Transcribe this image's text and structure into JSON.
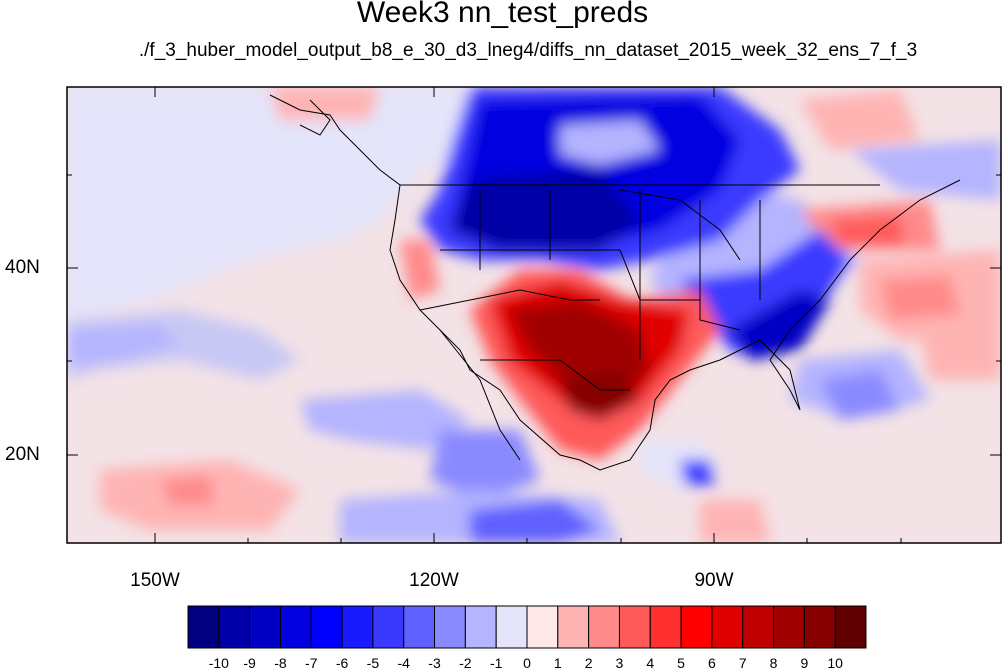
{
  "title": "Week3 nn_test_preds",
  "subtitle": "./f_3_huber_model_output_b8_e_30_d3_lneg4/diffs_nn_dataset_2015_week_32_ens_7_f_3",
  "lat_labels": [
    "40N",
    "20N"
  ],
  "lon_labels": [
    "150W",
    "120W",
    "90W"
  ],
  "colorbar": {
    "colors": [
      "#000080",
      "#0000a6",
      "#0000c4",
      "#0000e0",
      "#0000ff",
      "#1a1aff",
      "#3a3aff",
      "#6060ff",
      "#8a8aff",
      "#b4b4ff",
      "#e4e4fa",
      "#ffe8e8",
      "#ffb4b4",
      "#ff8a8a",
      "#ff5a5a",
      "#ff3030",
      "#ff0000",
      "#e00000",
      "#c00000",
      "#a00000",
      "#860000",
      "#600000"
    ],
    "labels": [
      "-10",
      "-9",
      "-8",
      "-7",
      "-6",
      "-5",
      "-4",
      "-3",
      "-2",
      "-1",
      "0",
      "1",
      "2",
      "3",
      "4",
      "5",
      "6",
      "7",
      "8",
      "9",
      "10"
    ]
  }
}
